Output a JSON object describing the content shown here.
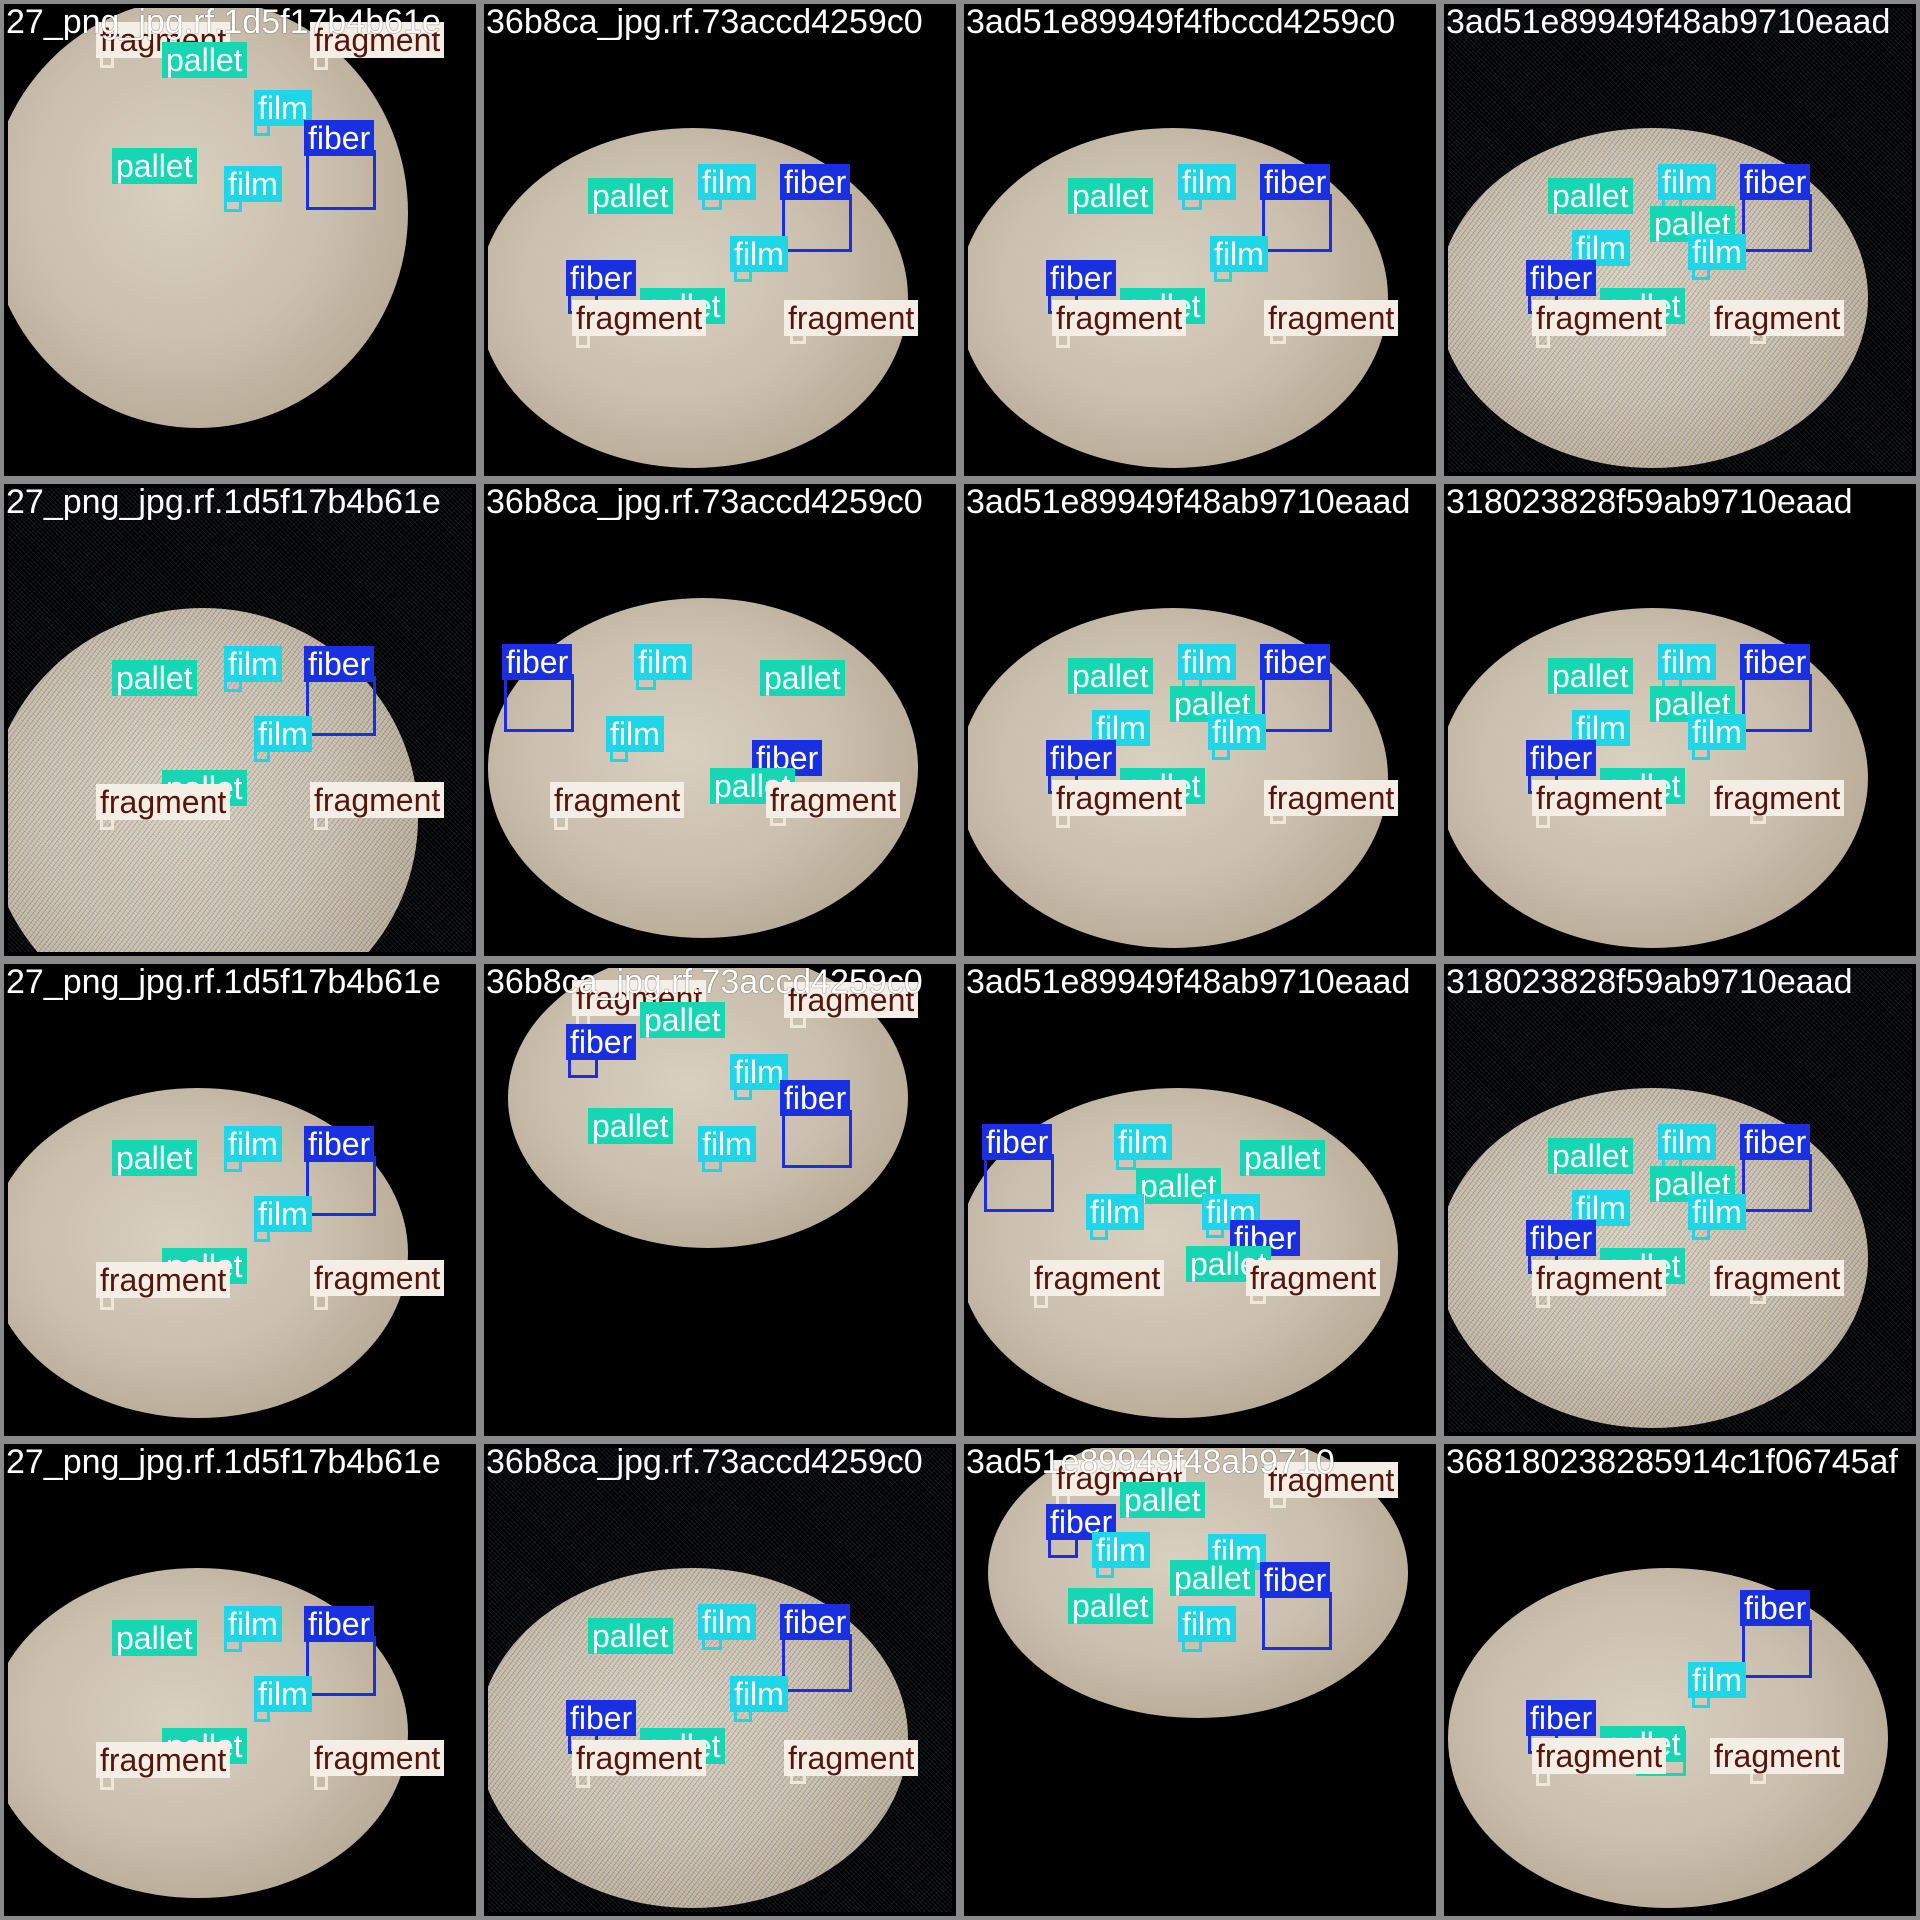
{
  "tiles": [
    {
      "name": "27_png_jpg.rf.1d5f17b4b61e",
      "noise": false,
      "labels": [
        {
          "cls": "fragment",
          "text": "fragment"
        },
        {
          "cls": "pallet",
          "text": "pallet"
        },
        {
          "cls": "fragment",
          "text": "fragment"
        },
        {
          "cls": "film",
          "text": "film"
        },
        {
          "cls": "fiber",
          "text": "fiber"
        },
        {
          "cls": "pallet",
          "text": "pallet"
        },
        {
          "cls": "film",
          "text": "film"
        }
      ]
    },
    {
      "name": "36b8ca_jpg.rf.73accd4259c0",
      "noise": false,
      "labels": [
        {
          "cls": "pallet",
          "text": "pallet"
        },
        {
          "cls": "film",
          "text": "film"
        },
        {
          "cls": "fiber",
          "text": "fiber"
        },
        {
          "cls": "film",
          "text": "film"
        },
        {
          "cls": "fiber",
          "text": "fiber"
        },
        {
          "cls": "pallet",
          "text": "pallet"
        },
        {
          "cls": "fragment",
          "text": "fragment"
        },
        {
          "cls": "fragment",
          "text": "fragment"
        }
      ]
    },
    {
      "name": "3ad51e89949f4fbccd4259c0",
      "noise": false,
      "labels": [
        {
          "cls": "pallet",
          "text": "pallet"
        },
        {
          "cls": "film",
          "text": "film"
        },
        {
          "cls": "fiber",
          "text": "fiber"
        },
        {
          "cls": "film",
          "text": "film"
        },
        {
          "cls": "fiber",
          "text": "fiber"
        },
        {
          "cls": "pallet",
          "text": "pallet"
        },
        {
          "cls": "fragment",
          "text": "fragment"
        },
        {
          "cls": "fragment",
          "text": "fragment"
        }
      ]
    },
    {
      "name": "3ad51e89949f48ab9710eaad",
      "noise": true,
      "labels": [
        {
          "cls": "pallet",
          "text": "pallet"
        },
        {
          "cls": "film",
          "text": "film"
        },
        {
          "cls": "fiber",
          "text": "fiber"
        },
        {
          "cls": "pallet",
          "text": "pallet"
        },
        {
          "cls": "film",
          "text": "film"
        },
        {
          "cls": "film",
          "text": "film"
        },
        {
          "cls": "fiber",
          "text": "fiber"
        },
        {
          "cls": "pallet",
          "text": "pallet"
        },
        {
          "cls": "fragment",
          "text": "fragment"
        },
        {
          "cls": "fragment",
          "text": "fragment"
        }
      ]
    },
    {
      "name": "27_png_jpg.rf.1d5f17b4b61e",
      "noise": true,
      "labels": [
        {
          "cls": "film",
          "text": "film"
        },
        {
          "cls": "fiber",
          "text": "fiber"
        },
        {
          "cls": "pallet",
          "text": "pallet"
        },
        {
          "cls": "film",
          "text": "film"
        },
        {
          "cls": "pallet",
          "text": "pallet"
        },
        {
          "cls": "fragment",
          "text": "fragment"
        },
        {
          "cls": "fragment",
          "text": "fragment"
        }
      ]
    },
    {
      "name": "36b8ca_jpg.rf.73accd4259c0",
      "noise": false,
      "labels": [
        {
          "cls": "fiber",
          "text": "fiber"
        },
        {
          "cls": "film",
          "text": "film"
        },
        {
          "cls": "pallet",
          "text": "pallet"
        },
        {
          "cls": "film",
          "text": "film"
        },
        {
          "cls": "fiber",
          "text": "fiber"
        },
        {
          "cls": "pallet",
          "text": "pallet"
        },
        {
          "cls": "fragment",
          "text": "fragment"
        },
        {
          "cls": "fragment",
          "text": "fragment"
        }
      ]
    },
    {
      "name": "3ad51e89949f48ab9710eaad",
      "noise": false,
      "labels": [
        {
          "cls": "pallet",
          "text": "pallet"
        },
        {
          "cls": "film",
          "text": "film"
        },
        {
          "cls": "fiber",
          "text": "fiber"
        },
        {
          "cls": "pallet",
          "text": "pallet"
        },
        {
          "cls": "film",
          "text": "film"
        },
        {
          "cls": "film",
          "text": "film"
        },
        {
          "cls": "fiber",
          "text": "fiber"
        },
        {
          "cls": "pallet",
          "text": "pallet"
        },
        {
          "cls": "fragment",
          "text": "fragment"
        },
        {
          "cls": "fragment",
          "text": "fragment"
        }
      ]
    },
    {
      "name": "318023828f59ab9710eaad",
      "noise": false,
      "labels": [
        {
          "cls": "pallet",
          "text": "pallet"
        },
        {
          "cls": "film",
          "text": "film"
        },
        {
          "cls": "fiber",
          "text": "fiber"
        },
        {
          "cls": "pallet",
          "text": "pallet"
        },
        {
          "cls": "film",
          "text": "film"
        },
        {
          "cls": "film",
          "text": "film"
        },
        {
          "cls": "fiber",
          "text": "fiber"
        },
        {
          "cls": "pallet",
          "text": "pallet"
        },
        {
          "cls": "fragment",
          "text": "fragment"
        },
        {
          "cls": "fragment",
          "text": "fragment"
        }
      ]
    },
    {
      "name": "27_png_jpg.rf.1d5f17b4b61e",
      "noise": false,
      "labels": [
        {
          "cls": "pallet",
          "text": "pallet"
        },
        {
          "cls": "film",
          "text": "film"
        },
        {
          "cls": "fiber",
          "text": "fiber"
        },
        {
          "cls": "film",
          "text": "film"
        },
        {
          "cls": "pallet",
          "text": "pallet"
        },
        {
          "cls": "fragment",
          "text": "fragment"
        },
        {
          "cls": "fragment",
          "text": "fragment"
        }
      ]
    },
    {
      "name": "36b8ca_jpg.rf.73accd4259c0",
      "noise": false,
      "labels": [
        {
          "cls": "fragment",
          "text": "fragment"
        },
        {
          "cls": "pallet",
          "text": "pallet"
        },
        {
          "cls": "fragment",
          "text": "fragment"
        },
        {
          "cls": "fiber",
          "text": "fiber"
        },
        {
          "cls": "film",
          "text": "film"
        },
        {
          "cls": "fiber",
          "text": "fiber"
        },
        {
          "cls": "pallet",
          "text": "pallet"
        },
        {
          "cls": "film",
          "text": "film"
        }
      ]
    },
    {
      "name": "3ad51e89949f48ab9710eaad",
      "noise": false,
      "labels": [
        {
          "cls": "fiber",
          "text": "fiber"
        },
        {
          "cls": "film",
          "text": "film"
        },
        {
          "cls": "pallet",
          "text": "pallet"
        },
        {
          "cls": "pallet",
          "text": "pallet"
        },
        {
          "cls": "film",
          "text": "film"
        },
        {
          "cls": "film",
          "text": "film"
        },
        {
          "cls": "fiber",
          "text": "fiber"
        },
        {
          "cls": "pallet",
          "text": "pallet"
        },
        {
          "cls": "fragment",
          "text": "fragment"
        },
        {
          "cls": "fragment",
          "text": "fragment"
        }
      ]
    },
    {
      "name": "318023828f59ab9710eaad",
      "noise": true,
      "labels": [
        {
          "cls": "pallet",
          "text": "pallet"
        },
        {
          "cls": "film",
          "text": "film"
        },
        {
          "cls": "fiber",
          "text": "fiber"
        },
        {
          "cls": "pallet",
          "text": "pallet"
        },
        {
          "cls": "film",
          "text": "film"
        },
        {
          "cls": "film",
          "text": "film"
        },
        {
          "cls": "fiber",
          "text": "fiber"
        },
        {
          "cls": "pallet",
          "text": "pallet"
        },
        {
          "cls": "fragment",
          "text": "fragment"
        },
        {
          "cls": "fragment",
          "text": "fragment"
        }
      ]
    },
    {
      "name": "27_png_jpg.rf.1d5f17b4b61e",
      "noise": false,
      "labels": [
        {
          "cls": "pallet",
          "text": "pallet"
        },
        {
          "cls": "film",
          "text": "film"
        },
        {
          "cls": "fiber",
          "text": "fiber"
        },
        {
          "cls": "film",
          "text": "film"
        },
        {
          "cls": "pallet",
          "text": "pallet"
        },
        {
          "cls": "fragment",
          "text": "fragment"
        },
        {
          "cls": "fragment",
          "text": "fragment"
        }
      ]
    },
    {
      "name": "36b8ca_jpg.rf.73accd4259c0",
      "noise": true,
      "labels": [
        {
          "cls": "pallet",
          "text": "pallet"
        },
        {
          "cls": "film",
          "text": "film"
        },
        {
          "cls": "fiber",
          "text": "fiber"
        },
        {
          "cls": "film",
          "text": "film"
        },
        {
          "cls": "fiber",
          "text": "fiber"
        },
        {
          "cls": "pallet",
          "text": "pallet"
        },
        {
          "cls": "fragment",
          "text": "fragment"
        },
        {
          "cls": "fragment",
          "text": "fragment"
        }
      ]
    },
    {
      "name": "3ad51e89949f48ab9710",
      "noise": false,
      "labels": [
        {
          "cls": "fragment",
          "text": "fragment"
        },
        {
          "cls": "pallet",
          "text": "pallet"
        },
        {
          "cls": "fragment",
          "text": "fragment"
        },
        {
          "cls": "fiber",
          "text": "fiber"
        },
        {
          "cls": "film",
          "text": "film"
        },
        {
          "cls": "film",
          "text": "film"
        },
        {
          "cls": "pallet",
          "text": "pallet"
        },
        {
          "cls": "fiber",
          "text": "fiber"
        },
        {
          "cls": "pallet",
          "text": "pallet"
        },
        {
          "cls": "film",
          "text": "film"
        }
      ]
    },
    {
      "name": "368180238285914c1f06745af",
      "noise": false,
      "labels": [
        {
          "cls": "fiber",
          "text": "fiber"
        },
        {
          "cls": "film",
          "text": "film"
        },
        {
          "cls": "fiber",
          "text": "fiber"
        },
        {
          "cls": "pallet",
          "text": "pallet"
        },
        {
          "cls": "fragment",
          "text": "fragment"
        },
        {
          "cls": "fragment",
          "text": "fragment"
        }
      ]
    }
  ]
}
